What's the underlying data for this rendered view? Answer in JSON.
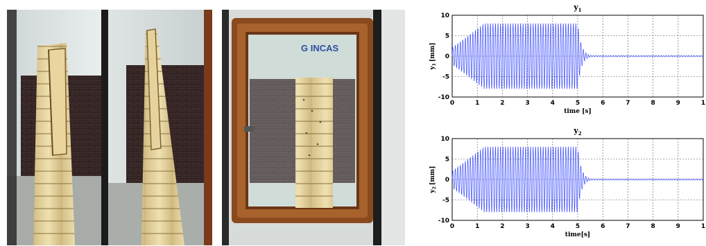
{
  "photos": {
    "panel3_sign": "G INCAS"
  },
  "colors": {
    "signal": "#3b4cff",
    "frame": "#8a4a1e"
  },
  "chart_data": [
    {
      "type": "line",
      "title_base": "y",
      "title_sub": "1",
      "xlabel": "time [s]",
      "ylabel_base": "y",
      "ylabel_sub": "1",
      "ylabel_unit": "[mm]",
      "xlim": [
        0,
        10
      ],
      "ylim": [
        -10,
        10
      ],
      "xticks": [
        "0",
        "1",
        "2",
        "3",
        "4",
        "5",
        "6",
        "7",
        "8",
        "9",
        "1"
      ],
      "yticks": [
        "10",
        "5",
        "0",
        "-5",
        "-10"
      ],
      "grid": true,
      "signal": {
        "kind": "excitation-then-decay",
        "frequency_hz": 10,
        "amplitude_mm": 8,
        "excitation_end_s": 5,
        "decay_end_s": 5.6
      }
    },
    {
      "type": "line",
      "title_base": "y",
      "title_sub": "2",
      "xlabel": "time[s]",
      "ylabel_base": "y",
      "ylabel_sub": "2",
      "ylabel_unit": "[mm]",
      "xlim": [
        0,
        10
      ],
      "ylim": [
        -10,
        10
      ],
      "xticks": [
        "0",
        "1",
        "2",
        "3",
        "4",
        "5",
        "6",
        "7",
        "8",
        "9",
        "1"
      ],
      "yticks": [
        "10",
        "5",
        "0",
        "-5",
        "-10"
      ],
      "grid": true,
      "signal": {
        "kind": "excitation-then-decay",
        "frequency_hz": 10,
        "amplitude_mm": 8,
        "excitation_end_s": 5,
        "decay_end_s": 5.6
      }
    }
  ]
}
